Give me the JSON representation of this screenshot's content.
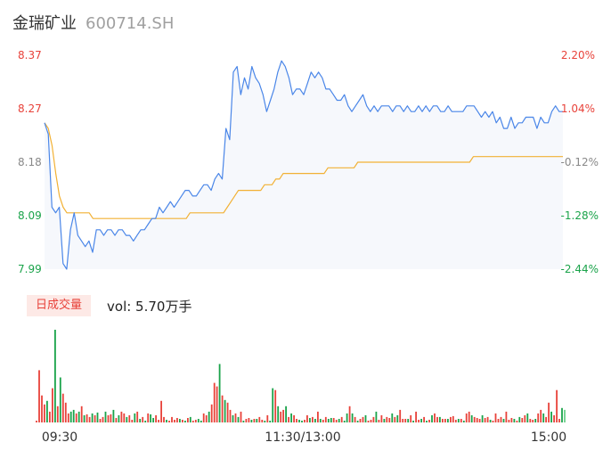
{
  "header": {
    "name": "金瑞矿业",
    "code": "600714.SH"
  },
  "volume_panel": {
    "period_label": "日成交量",
    "vol_label": "vol: 5.70万手"
  },
  "colors": {
    "price": "#4a86e8",
    "avg": "#f2b134",
    "up": "#e8423a",
    "down": "#1aa34a",
    "area": "#f6f8fc",
    "neutral": "#888888"
  },
  "chart_data": [
    {
      "type": "line",
      "title": "",
      "y_ticks_left": [
        "8.37",
        "8.27",
        "8.18",
        "8.09",
        "7.99"
      ],
      "y_ticks_right": [
        "2.20%",
        "1.04%",
        "-0.12%",
        "-1.28%",
        "-2.44%"
      ],
      "ylim": [
        7.99,
        8.37
      ],
      "x_ticks": [
        "09:30",
        "11:30/13:00",
        "15:00"
      ],
      "series": [
        {
          "name": "price",
          "values": [
            8.25,
            8.23,
            8.1,
            8.09,
            8.1,
            8.0,
            7.99,
            8.06,
            8.09,
            8.05,
            8.04,
            8.03,
            8.04,
            8.02,
            8.06,
            8.06,
            8.05,
            8.06,
            8.06,
            8.05,
            8.06,
            8.06,
            8.05,
            8.05,
            8.04,
            8.05,
            8.06,
            8.06,
            8.07,
            8.08,
            8.08,
            8.1,
            8.09,
            8.1,
            8.11,
            8.1,
            8.11,
            8.12,
            8.13,
            8.13,
            8.12,
            8.12,
            8.13,
            8.14,
            8.14,
            8.13,
            8.15,
            8.16,
            8.15,
            8.24,
            8.22,
            8.34,
            8.35,
            8.3,
            8.33,
            8.31,
            8.35,
            8.33,
            8.32,
            8.3,
            8.27,
            8.29,
            8.31,
            8.34,
            8.36,
            8.35,
            8.33,
            8.3,
            8.31,
            8.31,
            8.3,
            8.32,
            8.34,
            8.33,
            8.34,
            8.33,
            8.31,
            8.31,
            8.3,
            8.29,
            8.29,
            8.3,
            8.28,
            8.27,
            8.28,
            8.29,
            8.3,
            8.28,
            8.27,
            8.28,
            8.27,
            8.28,
            8.28,
            8.28,
            8.27,
            8.28,
            8.28,
            8.27,
            8.28,
            8.27,
            8.27,
            8.28,
            8.27,
            8.28,
            8.27,
            8.28,
            8.28,
            8.27,
            8.27,
            8.28,
            8.27,
            8.27,
            8.27,
            8.27,
            8.28,
            8.28,
            8.28,
            8.27,
            8.26,
            8.27,
            8.26,
            8.27,
            8.25,
            8.26,
            8.24,
            8.24,
            8.26,
            8.24,
            8.25,
            8.25,
            8.26,
            8.26,
            8.26,
            8.24,
            8.26,
            8.25,
            8.25,
            8.27,
            8.28,
            8.27,
            8.27
          ]
        },
        {
          "name": "avg",
          "values": [
            8.25,
            8.24,
            8.21,
            8.16,
            8.12,
            8.1,
            8.09,
            8.09,
            8.09,
            8.09,
            8.09,
            8.09,
            8.09,
            8.08,
            8.08,
            8.08,
            8.08,
            8.08,
            8.08,
            8.08,
            8.08,
            8.08,
            8.08,
            8.08,
            8.08,
            8.08,
            8.08,
            8.08,
            8.08,
            8.08,
            8.08,
            8.08,
            8.08,
            8.08,
            8.08,
            8.08,
            8.08,
            8.08,
            8.08,
            8.09,
            8.09,
            8.09,
            8.09,
            8.09,
            8.09,
            8.09,
            8.09,
            8.09,
            8.09,
            8.1,
            8.11,
            8.12,
            8.13,
            8.13,
            8.13,
            8.13,
            8.13,
            8.13,
            8.13,
            8.14,
            8.14,
            8.14,
            8.15,
            8.15,
            8.16,
            8.16,
            8.16,
            8.16,
            8.16,
            8.16,
            8.16,
            8.16,
            8.16,
            8.16,
            8.16,
            8.16,
            8.17,
            8.17,
            8.17,
            8.17,
            8.17,
            8.17,
            8.17,
            8.17,
            8.18,
            8.18,
            8.18,
            8.18,
            8.18,
            8.18,
            8.18,
            8.18,
            8.18,
            8.18,
            8.18,
            8.18,
            8.18,
            8.18,
            8.18,
            8.18,
            8.18,
            8.18,
            8.18,
            8.18,
            8.18,
            8.18,
            8.18,
            8.18,
            8.18,
            8.18,
            8.18,
            8.18,
            8.18,
            8.18,
            8.18,
            8.19,
            8.19,
            8.19,
            8.19,
            8.19,
            8.19,
            8.19,
            8.19,
            8.19,
            8.19,
            8.19,
            8.19,
            8.19,
            8.19,
            8.19,
            8.19,
            8.19,
            8.19,
            8.19,
            8.19,
            8.19,
            8.19,
            8.19,
            8.19,
            8.19
          ]
        }
      ]
    },
    {
      "type": "bar",
      "title": "",
      "series": [
        {
          "name": "volume",
          "values": [
            2,
            58,
            30,
            20,
            24,
            12,
            38,
            103,
            18,
            50,
            32,
            22,
            10,
            12,
            14,
            10,
            12,
            18,
            8,
            9,
            6,
            10,
            8,
            11,
            4,
            6,
            12,
            8,
            9,
            14,
            5,
            8,
            12,
            10,
            6,
            8,
            3,
            10,
            12,
            4,
            6,
            2,
            10,
            9,
            5,
            8,
            3,
            24,
            6,
            3,
            2,
            6,
            3,
            5,
            4,
            3,
            2,
            5,
            6,
            2,
            3,
            4,
            2,
            10,
            8,
            12,
            20,
            44,
            40,
            65,
            30,
            25,
            22,
            14,
            8,
            10,
            6,
            12,
            2,
            4,
            5,
            3,
            4,
            4,
            6,
            3,
            2,
            8,
            2,
            38,
            36,
            18,
            12,
            14,
            18,
            6,
            10,
            8,
            4,
            3,
            2,
            3,
            8,
            5,
            6,
            4,
            12,
            4,
            3,
            6,
            4,
            5,
            5,
            3,
            4,
            6,
            2,
            10,
            18,
            10,
            6,
            2,
            4,
            6,
            8,
            2,
            3,
            6,
            12,
            3,
            8,
            4,
            6,
            5,
            10,
            6,
            8,
            14,
            4,
            4,
            4,
            8,
            2,
            12,
            3,
            4,
            6,
            2,
            3,
            8,
            10,
            6,
            6,
            4,
            4,
            4,
            6,
            7,
            3,
            4,
            4,
            2,
            10,
            12,
            8,
            6,
            5,
            4,
            8,
            5,
            6,
            3,
            2,
            10,
            4,
            6,
            4,
            12,
            3,
            5,
            4,
            2,
            6,
            5,
            8,
            10,
            4,
            3,
            4,
            10,
            14,
            10,
            6,
            22,
            12,
            8,
            36,
            4,
            16,
            14
          ]
        },
        {
          "name": "direction",
          "values": [
            0,
            1,
            1,
            1,
            -1,
            1,
            1,
            -1,
            1,
            -1,
            1,
            1,
            1,
            -1,
            -1,
            1,
            -1,
            1,
            -1,
            1,
            1,
            -1,
            1,
            -1,
            1,
            1,
            -1,
            1,
            1,
            -1,
            1,
            -1,
            1,
            1,
            -1,
            1,
            1,
            -1,
            1,
            -1,
            1,
            -1,
            1,
            -1,
            -1,
            1,
            1,
            1,
            1,
            -1,
            1,
            1,
            1,
            1,
            -1,
            1,
            -1,
            1,
            -1,
            1,
            1,
            -1,
            -1,
            1,
            1,
            -1,
            1,
            1,
            1,
            -1,
            1,
            -1,
            1,
            1,
            -1,
            1,
            -1,
            1,
            -1,
            1,
            1,
            -1,
            1,
            -1,
            1,
            1,
            -1,
            1,
            -1,
            -1,
            1,
            -1,
            1,
            1,
            -1,
            1,
            -1,
            1,
            1,
            -1,
            -1,
            1,
            1,
            -1,
            1,
            -1,
            1,
            -1,
            1,
            1,
            -1,
            -1,
            1,
            1,
            -1,
            1,
            -1,
            -1,
            1,
            -1,
            1,
            -1,
            1,
            1,
            -1,
            1,
            1,
            1,
            -1,
            1,
            1,
            -1,
            1,
            1,
            -1,
            1,
            -1,
            1,
            1,
            1,
            -1,
            1,
            -1,
            1,
            1,
            -1,
            1,
            -1,
            1,
            -1,
            1,
            1,
            -1,
            1,
            1,
            -1,
            1,
            1,
            1,
            -1,
            1,
            -1,
            1,
            1,
            -1,
            1,
            1,
            1,
            -1,
            1,
            1,
            -1,
            1,
            1,
            1,
            1,
            -1,
            1,
            1,
            1,
            -1,
            1,
            -1,
            1,
            1,
            -1,
            1,
            1,
            -1,
            1,
            1,
            -1,
            1,
            1,
            -1,
            1,
            1,
            1,
            -1,
            0
          ]
        }
      ]
    }
  ]
}
